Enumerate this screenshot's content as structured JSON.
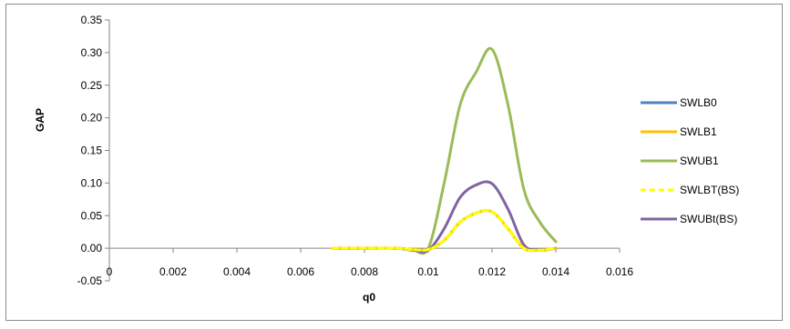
{
  "chart_data": {
    "type": "line",
    "title": "",
    "xlabel": "q0",
    "ylabel": "GAP",
    "xlim": [
      0,
      0.016
    ],
    "ylim": [
      -0.05,
      0.35
    ],
    "x_ticks": [
      "0",
      "0.002",
      "0.004",
      "0.006",
      "0.008",
      "0.01",
      "0.012",
      "0.014",
      "0.016"
    ],
    "y_ticks": [
      "-0.05",
      "0.00",
      "0.05",
      "0.10",
      "0.15",
      "0.20",
      "0.25",
      "0.30",
      "0.35"
    ],
    "grid": false,
    "legend_position": "right",
    "x": [
      0.007,
      0.008,
      0.009,
      0.0095,
      0.01,
      0.0105,
      0.011,
      0.0115,
      0.012,
      0.0125,
      0.013,
      0.0135,
      0.014
    ],
    "series": [
      {
        "name": "SWLB0",
        "color": "#4f81bd",
        "dash": false,
        "values": [
          0,
          0,
          0,
          -0.002,
          -0.002,
          0.012,
          0.04,
          0.054,
          0.056,
          0.03,
          0.0,
          -0.003,
          0.0
        ]
      },
      {
        "name": "SWLB1",
        "color": "#ffc000",
        "dash": false,
        "values": [
          0,
          0,
          0,
          -0.002,
          -0.002,
          0.012,
          0.04,
          0.054,
          0.056,
          0.03,
          0.0,
          -0.003,
          0.0
        ]
      },
      {
        "name": "SWUB1",
        "color": "#9bbb59",
        "dash": false,
        "values": [
          0,
          0,
          0,
          -0.002,
          0.0,
          0.1,
          0.22,
          0.27,
          0.305,
          0.22,
          0.09,
          0.04,
          0.01
        ]
      },
      {
        "name": "SWLBT(BS)",
        "color": "#ffff00",
        "dash": true,
        "values": [
          0,
          0,
          0,
          -0.002,
          -0.002,
          0.012,
          0.04,
          0.054,
          0.056,
          0.03,
          0.0,
          -0.003,
          0.0
        ]
      },
      {
        "name": "SWUBt(BS)",
        "color": "#8064a2",
        "dash": false,
        "values": [
          0,
          0,
          0,
          -0.003,
          -0.003,
          0.03,
          0.078,
          0.097,
          0.099,
          0.06,
          0.005,
          -0.003,
          0.0
        ]
      }
    ]
  }
}
